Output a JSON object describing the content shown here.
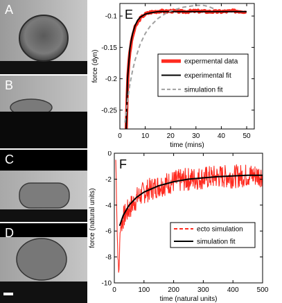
{
  "micrographs": {
    "panels": [
      {
        "letter": "A"
      },
      {
        "letter": "B"
      },
      {
        "letter": "C"
      },
      {
        "letter": "D"
      }
    ],
    "scale_bar": "scale bar"
  },
  "chart_data": [
    {
      "panel_letter": "E",
      "type": "line",
      "xlabel": "time (mins)",
      "ylabel": "force (dyn)",
      "xlim": [
        0,
        53
      ],
      "ylim": [
        -0.28,
        -0.08
      ],
      "xticks": [
        0,
        10,
        20,
        30,
        40,
        50
      ],
      "yticks": [
        -0.1,
        -0.15,
        -0.2,
        -0.25
      ],
      "legend_position": "center-right",
      "series": [
        {
          "name": "expermental data",
          "style": "thick-solid",
          "color": "#ff2a1f",
          "x": [
            2.5,
            3,
            3.5,
            4,
            5,
            6,
            7,
            8,
            9,
            10,
            12,
            14,
            16,
            18,
            20,
            25,
            30,
            35,
            40,
            45,
            50
          ],
          "y": [
            -0.28,
            -0.21,
            -0.175,
            -0.155,
            -0.132,
            -0.118,
            -0.11,
            -0.104,
            -0.1,
            -0.097,
            -0.094,
            -0.093,
            -0.092,
            -0.093,
            -0.092,
            -0.093,
            -0.092,
            -0.093,
            -0.093,
            -0.092,
            -0.093
          ]
        },
        {
          "name": "experimental fit",
          "style": "solid",
          "color": "#000000",
          "x": [
            2.5,
            3,
            4,
            5,
            6,
            7,
            8,
            10,
            12,
            15,
            20,
            30,
            40,
            50
          ],
          "y": [
            -0.28,
            -0.2,
            -0.15,
            -0.128,
            -0.115,
            -0.107,
            -0.102,
            -0.097,
            -0.095,
            -0.093,
            -0.093,
            -0.093,
            -0.093,
            -0.093
          ]
        },
        {
          "name": "simulation fit",
          "style": "dashed",
          "color": "#a0a0a0",
          "x": [
            2,
            3,
            4,
            5,
            6,
            8,
            10,
            12,
            15,
            18,
            20,
            25,
            30,
            33,
            35,
            38
          ],
          "y": [
            -0.27,
            -0.235,
            -0.208,
            -0.187,
            -0.17,
            -0.145,
            -0.128,
            -0.116,
            -0.104,
            -0.096,
            -0.092,
            -0.086,
            -0.083,
            -0.083,
            -0.085,
            -0.09
          ]
        }
      ]
    },
    {
      "panel_letter": "F",
      "type": "line",
      "xlabel": "time (natural units)",
      "ylabel": "force (natural units)",
      "xlim": [
        0,
        500
      ],
      "ylim": [
        -10,
        0
      ],
      "xticks": [
        0,
        100,
        200,
        300,
        400,
        500
      ],
      "yticks": [
        0,
        -2,
        -4,
        -6,
        -8,
        -10
      ],
      "legend_position": "lower-right",
      "series": [
        {
          "name": "ecto simulation",
          "style": "dashed-noisy",
          "color": "#ff2a1f",
          "x": [
            5,
            10,
            15,
            20,
            30,
            40,
            50,
            75,
            100,
            150,
            200,
            250,
            300,
            350,
            400,
            450,
            500
          ],
          "y": [
            -0.5,
            -6.5,
            -9.5,
            -5.8,
            -5.0,
            -4.6,
            -4.3,
            -3.5,
            -3.0,
            -2.5,
            -2.2,
            -2.0,
            -1.9,
            -1.8,
            -1.8,
            -1.7,
            -1.7
          ]
        },
        {
          "name": "simulation fit",
          "style": "solid",
          "color": "#000000",
          "x": [
            18,
            30,
            50,
            75,
            100,
            150,
            200,
            250,
            300,
            350,
            400,
            450,
            500
          ],
          "y": [
            -5.6,
            -4.8,
            -4.0,
            -3.4,
            -3.0,
            -2.5,
            -2.2,
            -2.0,
            -1.9,
            -1.8,
            -1.75,
            -1.7,
            -1.7
          ]
        }
      ]
    }
  ]
}
